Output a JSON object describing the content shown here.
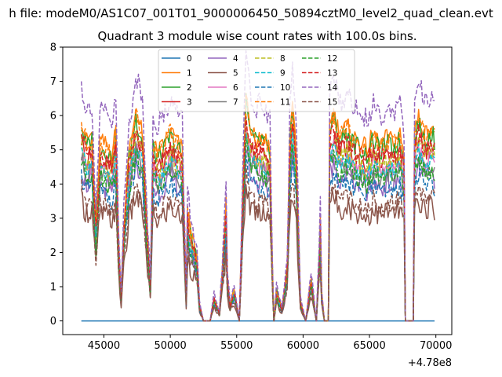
{
  "chart_data": {
    "type": "line",
    "suptitle": "h file: modeM0/AS1C07_001T01_9000006450_50894cztM0_level2_quad_clean.evt",
    "title": "Quadrant 3 module wise count rates with 100.0s bins.",
    "xlabel": "",
    "ylabel": "",
    "x_offset_label": "+4.78e8",
    "xlim": [
      41900,
      71200
    ],
    "ylim": [
      -0.4,
      8
    ],
    "xticks": [
      45000,
      50000,
      55000,
      60000,
      65000,
      70000
    ],
    "xtick_labels": [
      "45000",
      "50000",
      "55000",
      "60000",
      "65000",
      "70000"
    ],
    "yticks": [
      0,
      1,
      2,
      3,
      4,
      5,
      6,
      7,
      8
    ],
    "ytick_labels": [
      "0",
      "1",
      "2",
      "3",
      "4",
      "5",
      "6",
      "7",
      "8"
    ],
    "grid": false,
    "legend_position": "upper-center",
    "legend": [
      "0",
      "1",
      "2",
      "3",
      "4",
      "5",
      "6",
      "7",
      "8",
      "9",
      "10",
      "11",
      "12",
      "13",
      "14",
      "15"
    ],
    "x_start": 43300,
    "x_end": 69900,
    "bin_width": 100,
    "profile": {
      "x": [
        43300,
        43700,
        44100,
        44400,
        44700,
        45200,
        45600,
        45900,
        46100,
        46300,
        46500,
        46900,
        47400,
        47900,
        48200,
        48500,
        48700,
        49000,
        49500,
        50000,
        50500,
        50900,
        51200,
        51300,
        51600,
        52000,
        52200,
        52500,
        53000,
        53300,
        53700,
        54000,
        54200,
        54300,
        54500,
        54800,
        55200,
        55500,
        55700,
        56000,
        56500,
        57000,
        57500,
        57700,
        57800,
        58000,
        58400,
        58800,
        59000,
        59200,
        59500,
        59800,
        60200,
        60600,
        61000,
        61300,
        61400,
        61600,
        61900,
        62000,
        62300,
        62800,
        63300,
        63800,
        64300,
        64800,
        65300,
        65800,
        66300,
        66800,
        67300,
        67600,
        67700,
        68000,
        68300,
        68400,
        68700,
        69200,
        69700,
        69900
      ],
      "y": [
        5.2,
        4.6,
        4.8,
        2.4,
        4.6,
        4.5,
        4.3,
        4.9,
        2.0,
        0.6,
        2.5,
        4.3,
        5.4,
        4.8,
        2.8,
        0.9,
        4.6,
        4.3,
        4.5,
        4.9,
        4.6,
        4.4,
        0.6,
        2.8,
        2.2,
        1.6,
        0.4,
        0.0,
        0.0,
        0.6,
        0.2,
        1.7,
        3.0,
        1.1,
        0.4,
        0.8,
        0.0,
        3.8,
        5.8,
        5.0,
        4.7,
        4.8,
        4.4,
        1.2,
        0.0,
        0.8,
        0.3,
        1.3,
        4.6,
        5.6,
        4.2,
        0.5,
        0.0,
        1.1,
        0.0,
        2.5,
        0.7,
        0.0,
        0.0,
        5.1,
        5.3,
        4.8,
        5.0,
        4.7,
        4.6,
        4.4,
        4.8,
        4.5,
        4.7,
        4.6,
        4.8,
        4.2,
        0.0,
        0.0,
        0.0,
        4.9,
        5.2,
        4.8,
        5.0,
        4.8
      ]
    },
    "series": [
      {
        "name": "0",
        "color": "#1f77b4",
        "dash": "solid",
        "scale": 0.0,
        "noise": 0.0
      },
      {
        "name": "1",
        "color": "#ff7f0e",
        "dash": "solid",
        "scale": 1.14,
        "noise": 0.28
      },
      {
        "name": "2",
        "color": "#2ca02c",
        "dash": "solid",
        "scale": 1.1,
        "noise": 0.3
      },
      {
        "name": "3",
        "color": "#d62728",
        "dash": "solid",
        "scale": 1.02,
        "noise": 0.3
      },
      {
        "name": "4",
        "color": "#9467bd",
        "dash": "solid",
        "scale": 0.86,
        "noise": 0.32
      },
      {
        "name": "5",
        "color": "#8c564b",
        "dash": "solid",
        "scale": 0.68,
        "noise": 0.35
      },
      {
        "name": "6",
        "color": "#e377c2",
        "dash": "solid",
        "scale": 0.96,
        "noise": 0.28
      },
      {
        "name": "7",
        "color": "#7f7f7f",
        "dash": "solid",
        "scale": 0.92,
        "noise": 0.28
      },
      {
        "name": "8",
        "color": "#bcbd22",
        "dash": "dashed",
        "scale": 1.0,
        "noise": 0.28
      },
      {
        "name": "9",
        "color": "#17becf",
        "dash": "dashed",
        "scale": 0.95,
        "noise": 0.28
      },
      {
        "name": "10",
        "color": "#1f77b4",
        "dash": "dashed",
        "scale": 0.82,
        "noise": 0.3
      },
      {
        "name": "11",
        "color": "#ff7f0e",
        "dash": "dashed",
        "scale": 1.12,
        "noise": 0.3
      },
      {
        "name": "12",
        "color": "#2ca02c",
        "dash": "dashed",
        "scale": 0.9,
        "noise": 0.3
      },
      {
        "name": "13",
        "color": "#d62728",
        "dash": "dashed",
        "scale": 1.05,
        "noise": 0.3
      },
      {
        "name": "14",
        "color": "#9467bd",
        "dash": "dashed",
        "scale": 1.33,
        "noise": 0.35
      },
      {
        "name": "15",
        "color": "#8c564b",
        "dash": "dashed",
        "scale": 0.74,
        "noise": 0.3
      }
    ]
  }
}
